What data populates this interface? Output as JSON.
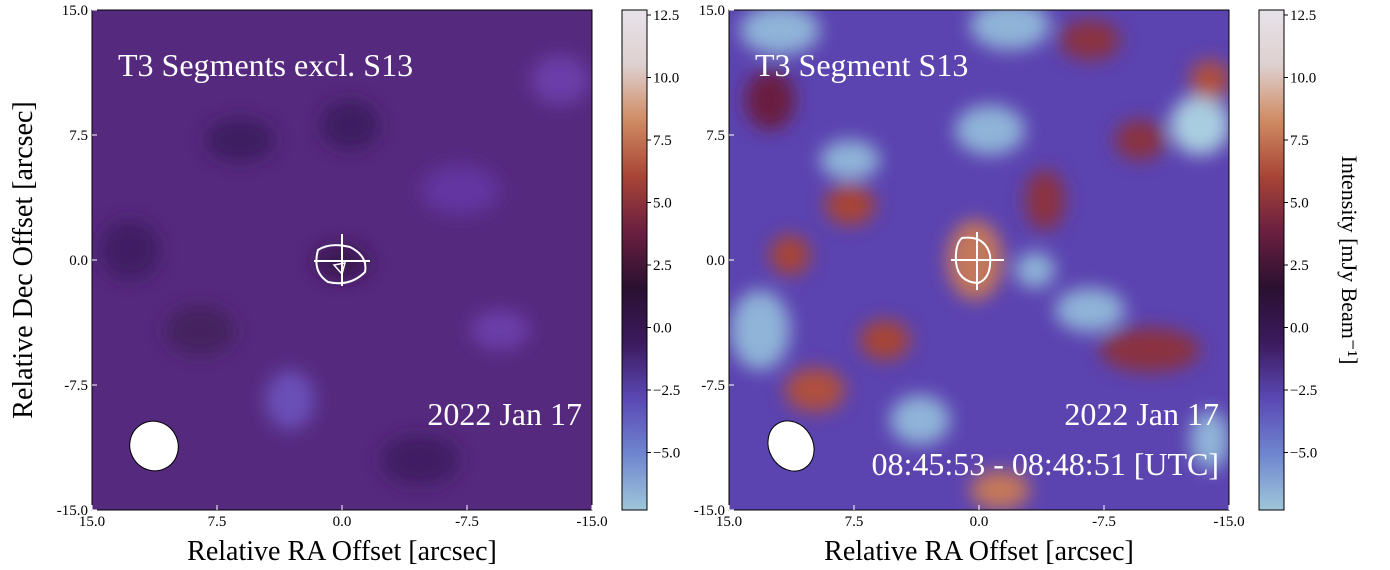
{
  "chart_data": [
    {
      "type": "heatmap",
      "title": "T3 Segments excl. S13",
      "annotations": [
        "2022 Jan 17"
      ],
      "xlabel": "Relative RA Offset [arcsec]",
      "ylabel": "Relative Dec Offset [arcsec]",
      "xlim": [
        15,
        -15
      ],
      "ylim": [
        -15,
        15
      ],
      "xticks": [
        {
          "value": 15,
          "label": "15.0"
        },
        {
          "value": 7.5,
          "label": "7.5"
        },
        {
          "value": 0,
          "label": "0.0"
        },
        {
          "value": -7.5,
          "label": "-7.5"
        },
        {
          "value": -15,
          "label": "-15.0"
        }
      ],
      "yticks": [
        {
          "value": -15,
          "label": "-15.0"
        },
        {
          "value": -7.5,
          "label": "-7.5"
        },
        {
          "value": 0,
          "label": "0.0"
        },
        {
          "value": 7.5,
          "label": "7.5"
        },
        {
          "value": 15,
          "label": "15.0"
        }
      ],
      "colorbar": {
        "lim": [
          -7.3,
          12.7
        ],
        "ticks": [
          {
            "value": -5,
            "label": "−5.0"
          },
          {
            "value": -2.5,
            "label": "−2.5"
          },
          {
            "value": 0,
            "label": "0.0"
          },
          {
            "value": 2.5,
            "label": "2.5"
          },
          {
            "value": 5,
            "label": "5.0"
          },
          {
            "value": 7.5,
            "label": "7.5"
          },
          {
            "value": 10,
            "label": "10.0"
          },
          {
            "value": 12.5,
            "label": "12.5"
          }
        ],
        "colormap": [
          "#9fc6da",
          "#6f86cf",
          "#5a48b4",
          "#3c1a5e",
          "#2a1030",
          "#6a1f40",
          "#a84436",
          "#cf8a62",
          "#ded0cf",
          "#e7e2ea"
        ]
      }
    },
    {
      "type": "heatmap",
      "title": "T3 Segment S13",
      "annotations": [
        "2022 Jan 17",
        "08:45:53 - 08:48:51 [UTC]"
      ],
      "xlabel": "Relative RA Offset [arcsec]",
      "xlim": [
        15,
        -15
      ],
      "ylim": [
        -15,
        15
      ],
      "xticks": [
        {
          "value": 15,
          "label": "15.0"
        },
        {
          "value": 7.5,
          "label": "7.5"
        },
        {
          "value": 0,
          "label": "0.0"
        },
        {
          "value": -7.5,
          "label": "-7.5"
        },
        {
          "value": -15,
          "label": "-15.0"
        }
      ],
      "yticks": [
        {
          "value": -15,
          "label": "-15.0"
        },
        {
          "value": -7.5,
          "label": "-7.5"
        },
        {
          "value": 0,
          "label": "0.0"
        },
        {
          "value": 7.5,
          "label": "7.5"
        },
        {
          "value": 15,
          "label": "15.0"
        }
      ],
      "colorbar": {
        "lim": [
          -7.3,
          12.7
        ],
        "ticks": [
          {
            "value": -5,
            "label": "−5.0"
          },
          {
            "value": -2.5,
            "label": "−2.5"
          },
          {
            "value": 0,
            "label": "0.0"
          },
          {
            "value": 2.5,
            "label": "2.5"
          },
          {
            "value": 5,
            "label": "5.0"
          },
          {
            "value": 7.5,
            "label": "7.5"
          },
          {
            "value": 10,
            "label": "10.0"
          },
          {
            "value": 12.5,
            "label": "12.5"
          }
        ],
        "label": "Intensity [mJy Beam⁻¹]",
        "colormap": [
          "#9fc6da",
          "#6f86cf",
          "#5a48b4",
          "#3c1a5e",
          "#2a1030",
          "#6a1f40",
          "#a84436",
          "#cf8a62",
          "#ded0cf",
          "#e7e2ea"
        ]
      }
    }
  ]
}
